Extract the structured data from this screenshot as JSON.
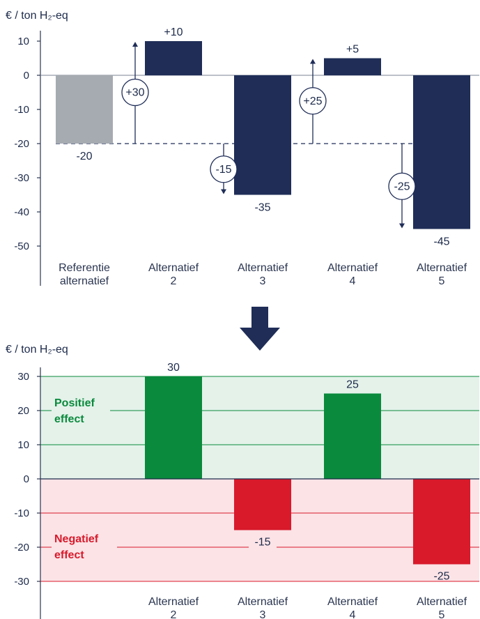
{
  "chart_data": [
    {
      "type": "bar",
      "unit_label": "€ / ton H₂-eq",
      "ylim": [
        -50,
        10
      ],
      "yticks": [
        10,
        0,
        -10,
        -20,
        -30,
        -40,
        -50
      ],
      "categories": [
        [
          "Referentie",
          "alternatief"
        ],
        [
          "Alternatief",
          "2"
        ],
        [
          "Alternatief",
          "3"
        ],
        [
          "Alternatief",
          "4"
        ],
        [
          "Alternatief",
          "5"
        ]
      ],
      "values": [
        -20,
        10,
        -35,
        5,
        -45
      ],
      "value_labels": [
        "-20",
        "+10",
        "-35",
        "+5",
        "-45"
      ],
      "differences": [
        {
          "from": -20,
          "to": 10,
          "label": "+30"
        },
        {
          "from": -20,
          "to": -35,
          "label": "-15"
        },
        {
          "from": -20,
          "to": 5,
          "label": "+25"
        },
        {
          "from": -20,
          "to": -45,
          "label": "-25"
        }
      ],
      "reference_value": -20,
      "colors": {
        "reference": "#a6abb2",
        "bar": "#1f2d57"
      }
    },
    {
      "type": "bar",
      "unit_label": "€ / ton H₂-eq",
      "ylim": [
        -30,
        30
      ],
      "yticks": [
        30,
        20,
        10,
        0,
        -10,
        -20,
        -30
      ],
      "categories": [
        [
          "Alternatief",
          "2"
        ],
        [
          "Alternatief",
          "3"
        ],
        [
          "Alternatief",
          "4"
        ],
        [
          "Alternatief",
          "5"
        ]
      ],
      "values": [
        30,
        -15,
        25,
        -25
      ],
      "value_labels": [
        "30",
        "-15",
        "25",
        "-25"
      ],
      "bands": {
        "positive": {
          "label": [
            "Positief",
            "effect"
          ],
          "color": "#0a8a3c",
          "fill": "#e4f2ea"
        },
        "negative": {
          "label": [
            "Negatief",
            "effect"
          ],
          "color": "#d81a2b",
          "fill": "#fbe3e6"
        }
      }
    }
  ],
  "arrow_color": "#1f2d57"
}
